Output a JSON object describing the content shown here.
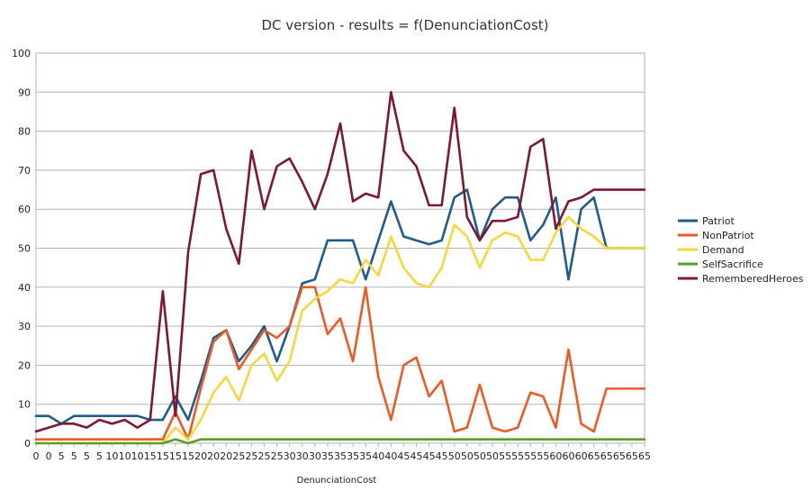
{
  "chart_data": {
    "type": "line",
    "title": "DC version - results = f(DenunciationCost)",
    "xlabel": "DenunciationCost",
    "ylabel": "",
    "ylim": [
      0,
      100
    ],
    "yticks": [
      0,
      10,
      20,
      30,
      40,
      50,
      60,
      70,
      80,
      90,
      100
    ],
    "grid": true,
    "legend_position": "right",
    "categories": [
      "0",
      "0",
      "5",
      "5",
      "5",
      "5",
      "10",
      "10",
      "10",
      "15",
      "15",
      "15",
      "15",
      "20",
      "20",
      "20",
      "25",
      "25",
      "25",
      "25",
      "30",
      "30",
      "30",
      "35",
      "35",
      "35",
      "35",
      "40",
      "40",
      "45",
      "45",
      "45",
      "45",
      "50",
      "50",
      "50",
      "50",
      "55",
      "55",
      "55",
      "55",
      "60",
      "60",
      "60",
      "65",
      "65",
      "65",
      "65",
      "65"
    ],
    "series": [
      {
        "name": "Patriot",
        "color": "#1f5b8e",
        "values": [
          7,
          7,
          5,
          7,
          7,
          7,
          7,
          7,
          7,
          6,
          6,
          12,
          6,
          16,
          27,
          29,
          21,
          25,
          30,
          21,
          30,
          41,
          42,
          52,
          52,
          52,
          42,
          52,
          62,
          53,
          52,
          51,
          52,
          63,
          65,
          52,
          60,
          63,
          63,
          52,
          56,
          63,
          42,
          60,
          63,
          50,
          50,
          50,
          50
        ]
      },
      {
        "name": "NonPatriot",
        "color": "#ee5a24",
        "values": [
          1,
          1,
          1,
          1,
          1,
          1,
          1,
          1,
          1,
          1,
          1,
          8,
          1,
          14,
          26,
          29,
          19,
          24,
          29,
          27,
          30,
          40,
          40,
          28,
          32,
          21,
          40,
          17,
          6,
          20,
          22,
          12,
          16,
          3,
          4,
          15,
          4,
          3,
          4,
          13,
          12,
          4,
          24,
          5,
          3,
          14,
          14,
          14,
          14
        ]
      },
      {
        "name": "Demand",
        "color": "#f9d63c",
        "values": [
          0,
          0,
          0,
          0,
          0,
          0,
          0,
          0,
          0,
          0,
          0,
          4,
          1,
          6,
          13,
          17,
          11,
          20,
          23,
          16,
          21,
          34,
          37,
          39,
          42,
          41,
          47,
          43,
          53,
          45,
          41,
          40,
          45,
          56,
          53,
          45,
          52,
          54,
          53,
          47,
          47,
          54,
          58,
          55,
          53,
          50,
          50,
          50,
          50
        ]
      },
      {
        "name": "SelfSacrifice",
        "color": "#5a9e2c",
        "values": [
          0,
          0,
          0,
          0,
          0,
          0,
          0,
          0,
          0,
          0,
          0,
          1,
          0,
          1,
          1,
          1,
          1,
          1,
          1,
          1,
          1,
          1,
          1,
          1,
          1,
          1,
          1,
          1,
          1,
          1,
          1,
          1,
          1,
          1,
          1,
          1,
          1,
          1,
          1,
          1,
          1,
          1,
          1,
          1,
          1,
          1,
          1,
          1,
          1
        ]
      },
      {
        "name": "RememberedHeroes",
        "color": "#7f1734",
        "values": [
          3,
          4,
          5,
          5,
          4,
          6,
          5,
          6,
          4,
          6,
          39,
          7,
          49,
          69,
          70,
          55,
          46,
          75,
          60,
          71,
          73,
          67,
          60,
          69,
          82,
          62,
          64,
          63,
          90,
          75,
          71,
          61,
          61,
          86,
          58,
          52,
          57,
          57,
          58,
          76,
          78,
          55,
          62,
          63,
          65,
          65,
          65,
          65,
          65
        ]
      }
    ]
  }
}
